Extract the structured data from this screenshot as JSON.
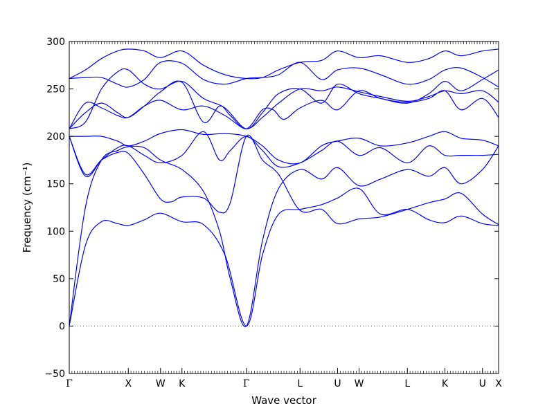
{
  "chart_data": {
    "type": "line",
    "title": "",
    "xlabel": "Wave vector",
    "ylabel": "Frequency (cm⁻¹)",
    "ylim": [
      -50,
      300
    ],
    "yticks": [
      -50,
      0,
      50,
      100,
      150,
      200,
      250,
      300
    ],
    "xlim": [
      0,
      8.0
    ],
    "x_ticks": [
      {
        "label": "Γ",
        "x": 0.0
      },
      {
        "label": "X",
        "x": 1.1
      },
      {
        "label": "W",
        "x": 1.7
      },
      {
        "label": "K",
        "x": 2.1
      },
      {
        "label": "Γ",
        "x": 3.3
      },
      {
        "label": "L",
        "x": 4.3
      },
      {
        "label": "U",
        "x": 5.0
      },
      {
        "label": "W",
        "x": 5.4
      },
      {
        "label": "L",
        "x": 6.3
      },
      {
        "label": "K",
        "x": 7.0
      },
      {
        "label": "U",
        "x": 7.7
      },
      {
        "label": "X",
        "x": 8.0
      }
    ],
    "zero_line": {
      "y": 0,
      "style": "dotted"
    },
    "grid": false,
    "legend": "none",
    "line_color": "#0000ff",
    "series": [
      {
        "x": [
          0.0,
          0.3,
          0.6,
          0.9,
          1.1,
          1.4,
          1.7,
          2.1,
          2.5,
          2.9,
          3.3,
          3.6,
          3.9,
          4.3,
          4.7,
          5.0,
          5.4,
          5.8,
          6.3,
          6.7,
          7.0,
          7.3,
          7.7,
          8.0
        ],
        "y": [
          0,
          85,
          110,
          108,
          106,
          112,
          119,
          110,
          107,
          75,
          0,
          75,
          118,
          123,
          128,
          135,
          145,
          118,
          123,
          112,
          109,
          116,
          108,
          106
        ]
      },
      {
        "x": [
          0.0,
          0.3,
          0.6,
          0.9,
          1.1,
          1.4,
          1.7,
          2.1,
          2.5,
          2.8,
          3.0,
          3.3,
          3.6,
          3.9,
          4.3,
          4.7,
          5.0,
          5.4,
          5.8,
          6.3,
          6.7,
          7.0,
          7.3,
          7.7,
          8.0
        ],
        "y": [
          0,
          125,
          175,
          185,
          189,
          188,
          175,
          165,
          142,
          100,
          50,
          0,
          90,
          145,
          165,
          155,
          167,
          148,
          155,
          165,
          158,
          167,
          150,
          165,
          190
        ]
      },
      {
        "x": [
          0.0,
          0.3,
          0.6,
          0.9,
          1.1,
          1.4,
          1.7,
          1.9,
          2.1,
          2.5,
          2.8,
          3.0,
          3.3,
          3.6,
          3.9,
          4.3,
          4.7,
          5.0,
          5.4,
          5.8,
          6.3,
          6.7,
          7.0,
          7.3,
          7.7,
          8.0
        ],
        "y": [
          200,
          160,
          175,
          183,
          182,
          160,
          134,
          131,
          136,
          135,
          120,
          130,
          200,
          175,
          160,
          122,
          123,
          108,
          113,
          115,
          123,
          130,
          134,
          140,
          118,
          107
        ]
      },
      {
        "x": [
          0.0,
          0.3,
          0.6,
          0.9,
          1.1,
          1.4,
          1.7,
          2.1,
          2.5,
          2.8,
          3.0,
          3.3,
          3.6,
          3.9,
          4.3,
          4.7,
          5.0,
          5.4,
          5.8,
          6.3,
          6.7,
          7.0,
          7.3,
          7.7,
          8.0
        ],
        "y": [
          200,
          158,
          175,
          188,
          190,
          180,
          172,
          180,
          205,
          175,
          185,
          200,
          185,
          168,
          172,
          185,
          195,
          180,
          188,
          172,
          190,
          180,
          180,
          180,
          181
        ]
      },
      {
        "x": [
          0.0,
          0.3,
          0.6,
          0.9,
          1.1,
          1.4,
          1.7,
          2.1,
          2.5,
          2.9,
          3.3,
          3.6,
          3.9,
          4.3,
          4.7,
          5.0,
          5.4,
          5.8,
          6.3,
          6.7,
          7.0,
          7.3,
          7.7,
          8.0
        ],
        "y": [
          200,
          200,
          200,
          195,
          190,
          195,
          203,
          207,
          202,
          203,
          200,
          190,
          175,
          172,
          190,
          195,
          198,
          190,
          193,
          200,
          205,
          198,
          196,
          190
        ]
      },
      {
        "x": [
          0.0,
          0.3,
          0.6,
          0.9,
          1.1,
          1.4,
          1.7,
          2.1,
          2.5,
          2.8,
          3.0,
          3.3,
          3.6,
          3.8,
          4.0,
          4.3,
          4.7,
          5.0,
          5.4,
          5.8,
          6.3,
          6.7,
          7.0,
          7.3,
          7.7,
          8.0
        ],
        "y": [
          208,
          225,
          235,
          225,
          220,
          232,
          247,
          257,
          215,
          232,
          222,
          208,
          228,
          228,
          218,
          230,
          238,
          228,
          248,
          240,
          236,
          240,
          248,
          228,
          240,
          220
        ]
      },
      {
        "x": [
          0.0,
          0.3,
          0.6,
          0.9,
          1.1,
          1.4,
          1.7,
          2.1,
          2.5,
          2.9,
          3.3,
          3.6,
          3.9,
          4.3,
          4.7,
          5.0,
          5.4,
          5.8,
          6.3,
          6.7,
          7.0,
          7.3,
          7.7,
          8.0
        ],
        "y": [
          208,
          235,
          230,
          222,
          220,
          232,
          238,
          228,
          232,
          222,
          208,
          220,
          235,
          250,
          248,
          252,
          247,
          242,
          237,
          242,
          248,
          245,
          248,
          236
        ]
      },
      {
        "x": [
          0.0,
          0.3,
          0.6,
          0.9,
          1.1,
          1.4,
          1.7,
          2.1,
          2.5,
          2.9,
          3.3,
          3.6,
          3.9,
          4.3,
          4.7,
          5.0,
          5.4,
          5.8,
          6.3,
          6.7,
          7.0,
          7.3,
          7.7,
          8.0
        ],
        "y": [
          208,
          215,
          250,
          268,
          270,
          255,
          250,
          258,
          240,
          230,
          208,
          225,
          245,
          250,
          235,
          255,
          245,
          240,
          235,
          245,
          258,
          248,
          260,
          270
        ]
      },
      {
        "x": [
          0.0,
          0.3,
          0.6,
          0.9,
          1.1,
          1.4,
          1.7,
          2.1,
          2.5,
          2.9,
          3.3,
          3.6,
          3.9,
          4.3,
          4.7,
          5.0,
          5.4,
          5.8,
          6.3,
          6.7,
          7.0,
          7.3,
          7.7,
          8.0
        ],
        "y": [
          261,
          262,
          262,
          255,
          252,
          260,
          278,
          277,
          260,
          255,
          261,
          262,
          265,
          278,
          260,
          270,
          272,
          265,
          255,
          260,
          270,
          272,
          262,
          252
        ]
      },
      {
        "x": [
          0.0,
          0.3,
          0.6,
          0.9,
          1.1,
          1.4,
          1.7,
          2.1,
          2.5,
          2.9,
          3.3,
          3.6,
          3.9,
          4.3,
          4.7,
          5.0,
          5.4,
          5.8,
          6.3,
          6.7,
          7.0,
          7.3,
          7.7,
          8.0
        ],
        "y": [
          261,
          270,
          282,
          290,
          292,
          290,
          283,
          290,
          275,
          265,
          261,
          262,
          270,
          278,
          280,
          290,
          283,
          285,
          278,
          282,
          290,
          285,
          290,
          292
        ]
      }
    ]
  }
}
